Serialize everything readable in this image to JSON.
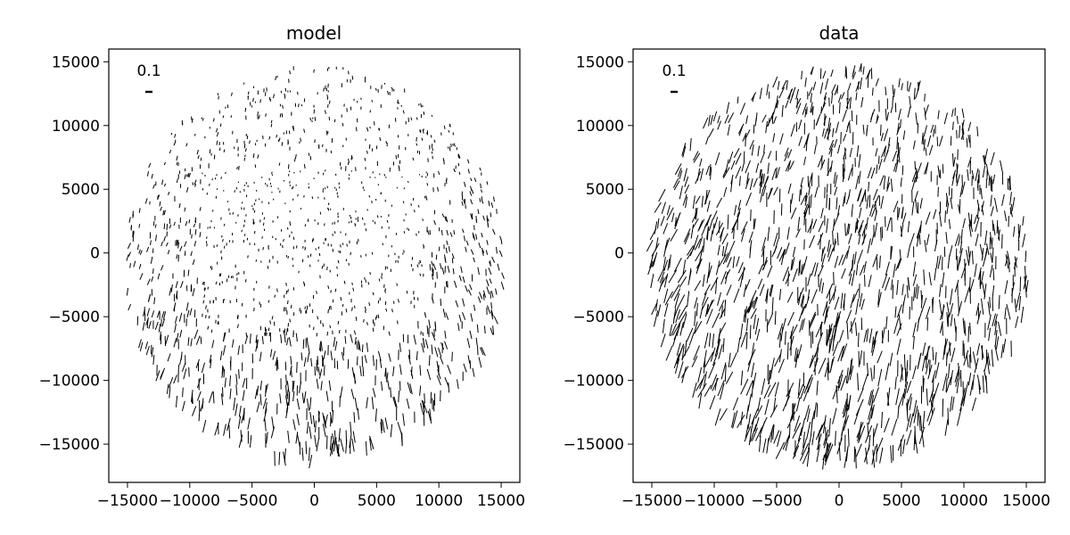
{
  "chart_data": [
    {
      "type": "quiver",
      "title": "model",
      "xlabel": "",
      "ylabel": "",
      "xlim": [
        -16500,
        16500
      ],
      "ylim": [
        -18000,
        16000
      ],
      "xticks": [
        -15000,
        -10000,
        -5000,
        0,
        5000,
        10000,
        15000
      ],
      "yticks": [
        -15000,
        -10000,
        -5000,
        0,
        5000,
        10000,
        15000
      ],
      "xtick_labels": [
        "−15000",
        "−10000",
        "−5000",
        "0",
        "5000",
        "10000",
        "15000"
      ],
      "ytick_labels": [
        "−15000",
        "−10000",
        "−5000",
        "0",
        "5000",
        "10000",
        "15000"
      ],
      "scale_key": {
        "label": "0.1",
        "value": 0.1
      },
      "field_model": "shear-like whisker field; whisker length grows toward the bottom of the field, near-vertical orientation, short dots in the central band",
      "grid": false,
      "legend": "none",
      "color": "#000000"
    },
    {
      "type": "quiver",
      "title": "data",
      "xlabel": "",
      "ylabel": "",
      "xlim": [
        -16500,
        16500
      ],
      "ylim": [
        -18000,
        16000
      ],
      "xticks": [
        -15000,
        -10000,
        -5000,
        0,
        5000,
        10000,
        15000
      ],
      "yticks": [
        -15000,
        -10000,
        -5000,
        0,
        5000,
        10000,
        15000
      ],
      "xtick_labels": [
        "−15000",
        "−10000",
        "−5000",
        "0",
        "5000",
        "10000",
        "15000"
      ],
      "ytick_labels": [
        "−15000",
        "−10000",
        "−5000",
        "0",
        "5000",
        "10000",
        "15000"
      ],
      "scale_key": {
        "label": "0.1",
        "value": 0.1
      },
      "field_model": "same field with measurement noise; longer, more uniform whiskers tilted slightly clockwise",
      "grid": false,
      "legend": "none",
      "color": "#000000"
    }
  ]
}
